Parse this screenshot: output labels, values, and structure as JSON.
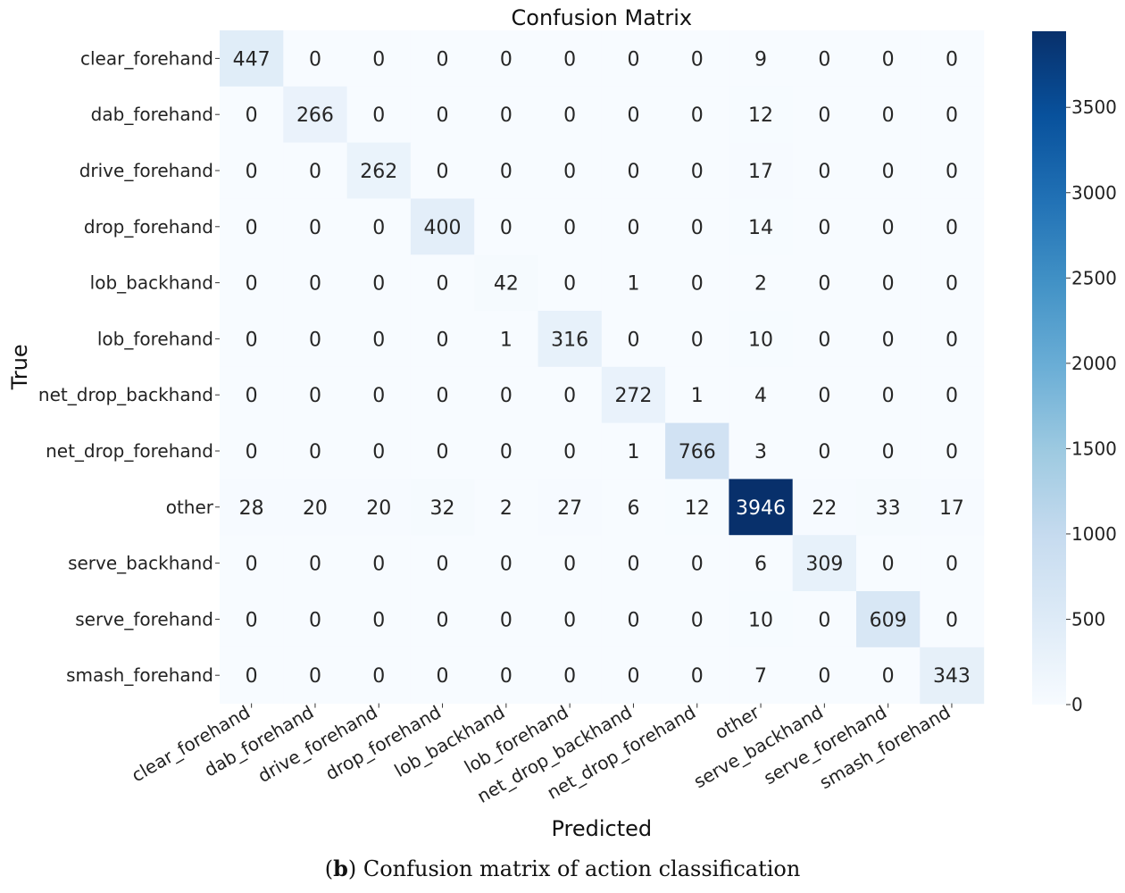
{
  "chart_data": {
    "type": "heatmap",
    "title": "Confusion Matrix",
    "xlabel": "Predicted",
    "ylabel": "True",
    "labels": [
      "clear_forehand",
      "dab_forehand",
      "drive_forehand",
      "drop_forehand",
      "lob_backhand",
      "lob_forehand",
      "net_drop_backhand",
      "net_drop_forehand",
      "other",
      "serve_backhand",
      "serve_forehand",
      "smash_forehand"
    ],
    "matrix": [
      [
        447,
        0,
        0,
        0,
        0,
        0,
        0,
        0,
        9,
        0,
        0,
        0
      ],
      [
        0,
        266,
        0,
        0,
        0,
        0,
        0,
        0,
        12,
        0,
        0,
        0
      ],
      [
        0,
        0,
        262,
        0,
        0,
        0,
        0,
        0,
        17,
        0,
        0,
        0
      ],
      [
        0,
        0,
        0,
        400,
        0,
        0,
        0,
        0,
        14,
        0,
        0,
        0
      ],
      [
        0,
        0,
        0,
        0,
        42,
        0,
        1,
        0,
        2,
        0,
        0,
        0
      ],
      [
        0,
        0,
        0,
        0,
        1,
        316,
        0,
        0,
        10,
        0,
        0,
        0
      ],
      [
        0,
        0,
        0,
        0,
        0,
        0,
        272,
        1,
        4,
        0,
        0,
        0
      ],
      [
        0,
        0,
        0,
        0,
        0,
        0,
        1,
        766,
        3,
        0,
        0,
        0
      ],
      [
        28,
        20,
        20,
        32,
        2,
        27,
        6,
        12,
        3946,
        22,
        33,
        17
      ],
      [
        0,
        0,
        0,
        0,
        0,
        0,
        0,
        0,
        6,
        309,
        0,
        0
      ],
      [
        0,
        0,
        0,
        0,
        0,
        0,
        0,
        0,
        10,
        0,
        609,
        0
      ],
      [
        0,
        0,
        0,
        0,
        0,
        0,
        0,
        0,
        7,
        0,
        0,
        343
      ]
    ],
    "colorbar": {
      "colormap": "Blues",
      "range": [
        0,
        3946
      ],
      "ticks": [
        0,
        500,
        1000,
        1500,
        2000,
        2500,
        3000,
        3500
      ]
    },
    "grid": false
  },
  "caption": {
    "label": "b",
    "text": " Confusion matrix of action classification"
  },
  "colors": {
    "low": "#f7fbff",
    "high": "#08306b"
  }
}
